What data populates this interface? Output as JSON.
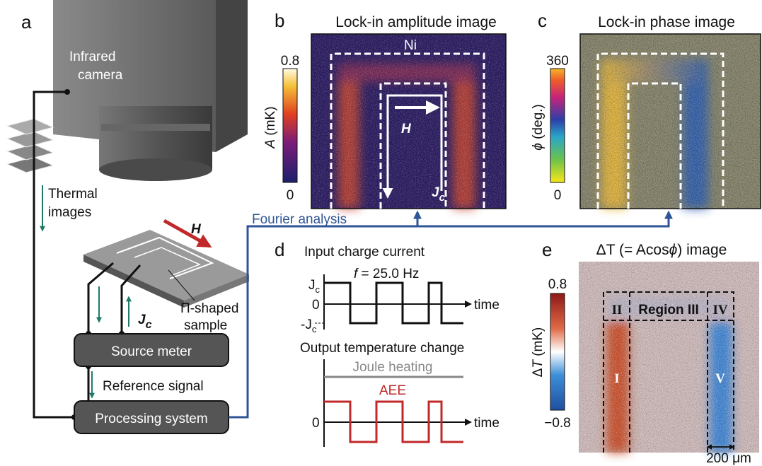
{
  "panel_a": {
    "letter": "a",
    "camera_label": [
      "Infrared",
      "camera"
    ],
    "thermal_label": [
      "Thermal",
      "images"
    ],
    "field": "H",
    "current": {
      "main": "J",
      "sub": "c"
    },
    "sample_label": [
      "Π-shaped",
      "sample"
    ],
    "source_meter": "Source meter",
    "reference": "Reference signal",
    "processing": "Processing system",
    "fourier": "Fourier analysis"
  },
  "panel_b": {
    "letter": "b",
    "title": "Lock-in amplitude image",
    "region": "Ni",
    "colorbar_max": "0.8",
    "colorbar_min": "0",
    "colorbar_label": {
      "italic": "A",
      "rest": " (mK)"
    },
    "field": "H",
    "current": {
      "main": "J",
      "sub": "c"
    }
  },
  "panel_c": {
    "letter": "c",
    "title": "Lock-in phase image",
    "colorbar_max": "360",
    "colorbar_min": "0",
    "colorbar_label": {
      "italic": "ϕ",
      "rest": " (deg.)"
    }
  },
  "panel_d": {
    "letter": "d",
    "input_title": "Input charge current",
    "frequency": {
      "italic": "f",
      "rest": " = 25.0 Hz"
    },
    "y_high": {
      "main": "J",
      "sub": "c"
    },
    "y_zero": "0",
    "y_low": {
      "main": "-J",
      "sub": "c"
    },
    "time_1": "time",
    "output_title": "Output temperature change",
    "joule": "Joule heating",
    "aee": "AEE",
    "output_zero": "0",
    "time_2": "time"
  },
  "panel_e": {
    "letter": "e",
    "title": {
      "pre": "ΔT (= A",
      "mid": "cos",
      "phi": "ϕ",
      "post": ") image"
    },
    "colorbar_max": "0.8",
    "colorbar_min": "−0.8",
    "colorbar_label": {
      "pre": "Δ",
      "italic": "T",
      "rest": " (mK)"
    },
    "regions": [
      "II",
      "Region III",
      "IV",
      "I",
      "V"
    ],
    "scale": "200 μm"
  }
}
